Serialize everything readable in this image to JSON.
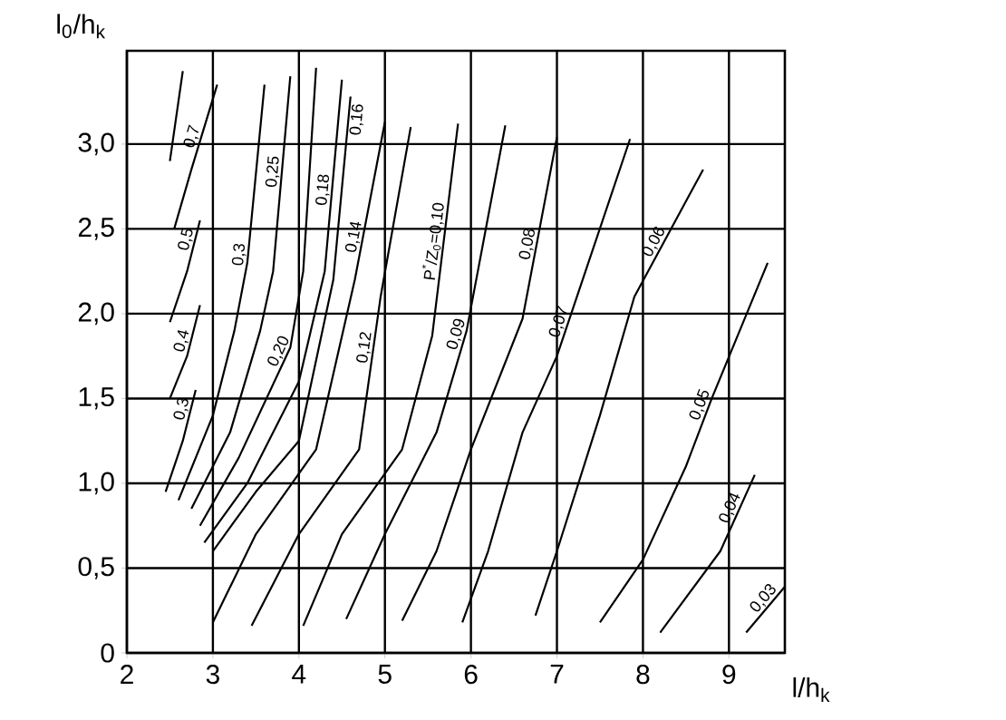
{
  "chart_data": {
    "type": "line",
    "xlabel": "l/h$_{k}$",
    "ylabel": "l$_{0}$/h$_{k}$",
    "xlim": [
      2,
      9.65
    ],
    "ylim": [
      0,
      3.55
    ],
    "xticks": [
      2,
      3,
      4,
      5,
      6,
      7,
      8,
      9
    ],
    "yticks": [
      {
        "value": 0,
        "label": "0"
      },
      {
        "value": 0.5,
        "label": "0,5"
      },
      {
        "value": 1,
        "label": "1,0"
      },
      {
        "value": 1.5,
        "label": "1,5"
      },
      {
        "value": 2,
        "label": "2,0"
      },
      {
        "value": 2.5,
        "label": "2,5"
      },
      {
        "value": 3,
        "label": "3,0"
      }
    ],
    "grid": true,
    "marker": "none",
    "line_style": "solid",
    "series": [
      {
        "color": "#000000",
        "x": [
          2.5,
          2.65
        ],
        "values": [
          2.9,
          3.43
        ]
      },
      {
        "name": "0,7",
        "color": "#000000",
        "x": [
          2.55,
          2.75,
          2.9,
          3.05
        ],
        "values": [
          2.5,
          2.85,
          3.1,
          3.35
        ]
      },
      {
        "name": "0,5",
        "color": "#000000",
        "x": [
          2.5,
          2.7,
          2.85
        ],
        "values": [
          1.95,
          2.25,
          2.55
        ]
      },
      {
        "name": "0,4",
        "color": "#000000",
        "x": [
          2.5,
          2.7,
          2.85
        ],
        "values": [
          1.5,
          1.75,
          2.05
        ]
      },
      {
        "name": "0,3",
        "color": "#000000",
        "x": [
          2.45,
          2.65,
          2.8
        ],
        "values": [
          0.95,
          1.25,
          1.55
        ]
      },
      {
        "name": "0,3",
        "color": "#000000",
        "x": [
          2.6,
          3.0,
          3.25,
          3.4,
          3.6
        ],
        "values": [
          0.9,
          1.4,
          1.9,
          2.3,
          3.35
        ]
      },
      {
        "name": "0,25",
        "color": "#000000",
        "x": [
          2.75,
          3.2,
          3.55,
          3.7,
          3.9
        ],
        "values": [
          0.85,
          1.3,
          1.9,
          2.25,
          3.4
        ]
      },
      {
        "name": "0,20",
        "color": "#000000",
        "x": [
          2.85,
          3.3,
          3.9,
          4.05,
          4.2
        ],
        "values": [
          0.75,
          1.15,
          1.8,
          2.25,
          3.45
        ]
      },
      {
        "name": "0,18",
        "color": "#000000",
        "x": [
          2.9,
          3.4,
          4.0,
          4.3,
          4.5
        ],
        "values": [
          0.65,
          1.0,
          1.6,
          2.25,
          3.38
        ]
      },
      {
        "name": "0,16",
        "color": "#000000",
        "x": [
          3.0,
          3.5,
          4.0,
          4.4,
          4.6
        ],
        "values": [
          0.6,
          0.95,
          1.25,
          2.2,
          3.28
        ]
      },
      {
        "name": "0,14",
        "color": "#000000",
        "x": [
          3.0,
          3.5,
          4.2,
          4.65,
          5.0
        ],
        "values": [
          0.18,
          0.7,
          1.2,
          2.2,
          3.13
        ]
      },
      {
        "name": "0,12",
        "color": "#000000",
        "x": [
          3.45,
          4.0,
          4.7,
          4.95,
          5.3
        ],
        "values": [
          0.16,
          0.7,
          1.2,
          2.1,
          3.1
        ]
      },
      {
        "name": "P$^{*}$/Z$_{0}$=0,10",
        "color": "#000000",
        "x": [
          4.05,
          4.5,
          5.2,
          5.55,
          5.85
        ],
        "values": [
          0.16,
          0.7,
          1.2,
          1.87,
          3.12
        ]
      },
      {
        "name": "0,09",
        "color": "#000000",
        "x": [
          4.55,
          5.0,
          5.6,
          5.95,
          6.4
        ],
        "values": [
          0.2,
          0.7,
          1.3,
          1.9,
          3.11
        ]
      },
      {
        "name": "0,08",
        "color": "#000000",
        "x": [
          5.2,
          5.6,
          6.0,
          6.6,
          7.0
        ],
        "values": [
          0.19,
          0.6,
          1.2,
          1.97,
          3.04
        ]
      },
      {
        "name": "0,07",
        "color": "#000000",
        "x": [
          5.9,
          6.2,
          6.6,
          7.0,
          7.85
        ],
        "values": [
          0.18,
          0.6,
          1.3,
          1.75,
          3.03
        ]
      },
      {
        "name": "0,06",
        "color": "#000000",
        "x": [
          6.75,
          7.0,
          7.5,
          7.9,
          8.7
        ],
        "values": [
          0.22,
          0.6,
          1.4,
          2.1,
          2.85
        ]
      },
      {
        "name": "0,05",
        "color": "#000000",
        "x": [
          7.5,
          8.0,
          8.5,
          8.8,
          9.45
        ],
        "values": [
          0.18,
          0.55,
          1.1,
          1.5,
          2.3
        ]
      },
      {
        "name": "0,04",
        "color": "#000000",
        "x": [
          8.2,
          8.9,
          9.3
        ],
        "values": [
          0.12,
          0.6,
          1.05
        ]
      },
      {
        "name": "0,03",
        "color": "#000000",
        "x": [
          9.2,
          9.65
        ],
        "values": [
          0.12,
          0.39
        ]
      }
    ]
  }
}
